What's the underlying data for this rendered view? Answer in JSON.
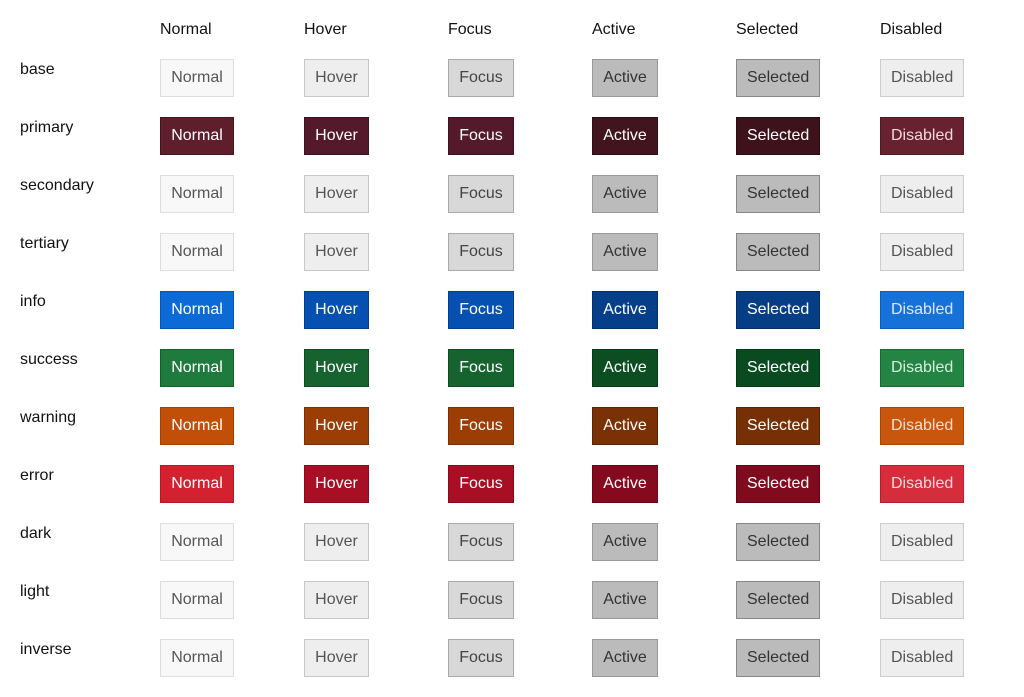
{
  "states": [
    {
      "key": "normal",
      "label": "Normal"
    },
    {
      "key": "hover",
      "label": "Hover"
    },
    {
      "key": "focus",
      "label": "Focus"
    },
    {
      "key": "active",
      "label": "Active"
    },
    {
      "key": "selected",
      "label": "Selected"
    },
    {
      "key": "disabled",
      "label": "Disabled"
    }
  ],
  "rows": [
    {
      "key": "base",
      "label": "base",
      "palette": "neutral"
    },
    {
      "key": "primary",
      "label": "primary",
      "palette": "primary"
    },
    {
      "key": "secondary",
      "label": "secondary",
      "palette": "neutral"
    },
    {
      "key": "tertiary",
      "label": "tertiary",
      "palette": "neutral"
    },
    {
      "key": "info",
      "label": "info",
      "palette": "info"
    },
    {
      "key": "success",
      "label": "success",
      "palette": "success"
    },
    {
      "key": "warning",
      "label": "warning",
      "palette": "warning"
    },
    {
      "key": "error",
      "label": "error",
      "palette": "error"
    },
    {
      "key": "dark",
      "label": "dark",
      "palette": "neutral"
    },
    {
      "key": "light",
      "label": "light",
      "palette": "neutral"
    },
    {
      "key": "inverse",
      "label": "inverse",
      "palette": "neutral"
    }
  ],
  "palettes": {
    "neutral": {
      "normal": {
        "bg": "#f8f8f8",
        "border": "#dddddd",
        "text": "#555555"
      },
      "hover": {
        "bg": "#eeeeee",
        "border": "#c8c8c8",
        "text": "#555555"
      },
      "focus": {
        "bg": "#d8d8d8",
        "border": "#aaaaaa",
        "text": "#444444"
      },
      "active": {
        "bg": "#bbbbbb",
        "border": "#999999",
        "text": "#333333"
      },
      "selected": {
        "bg": "#bbbbbb",
        "border": "#888888",
        "text": "#333333"
      },
      "disabled": {
        "bg": "#eeeeee",
        "border": "#cccccc",
        "text": "#555555"
      }
    },
    "primary": {
      "normal": {
        "bg": "#5e1e2c",
        "border": "#45141f",
        "text": "#ffffff"
      },
      "hover": {
        "bg": "#54192a",
        "border": "#3f1220",
        "text": "#ffffff"
      },
      "focus": {
        "bg": "#54192a",
        "border": "#3f1220",
        "text": "#ffffff"
      },
      "active": {
        "bg": "#41141e",
        "border": "#300e16",
        "text": "#ffffff"
      },
      "selected": {
        "bg": "#3d121b",
        "border": "#2c0c13",
        "text": "#ffffff"
      },
      "disabled": {
        "bg": "#68222f",
        "border": "#4e1a24",
        "text": "#f0d8dd"
      }
    },
    "info": {
      "normal": {
        "bg": "#0b6ad6",
        "border": "#0756b3",
        "text": "#ffffff"
      },
      "hover": {
        "bg": "#0550b1",
        "border": "#043f8e",
        "text": "#ffffff"
      },
      "focus": {
        "bg": "#0550b1",
        "border": "#043f8e",
        "text": "#ffffff"
      },
      "active": {
        "bg": "#063f89",
        "border": "#042f69",
        "text": "#ffffff"
      },
      "selected": {
        "bg": "#063e85",
        "border": "#042c63",
        "text": "#ffffff"
      },
      "disabled": {
        "bg": "#1672d9",
        "border": "#0e5dbb",
        "text": "#dbe9fb"
      }
    },
    "success": {
      "normal": {
        "bg": "#1f7a3d",
        "border": "#14602e",
        "text": "#ffffff"
      },
      "hover": {
        "bg": "#17632f",
        "border": "#0f4b22",
        "text": "#ffffff"
      },
      "focus": {
        "bg": "#17632f",
        "border": "#0f4b22",
        "text": "#ffffff"
      },
      "active": {
        "bg": "#0c4e22",
        "border": "#083a19",
        "text": "#ffffff"
      },
      "selected": {
        "bg": "#0a4a20",
        "border": "#073717",
        "text": "#ffffff"
      },
      "disabled": {
        "bg": "#238443",
        "border": "#186834",
        "text": "#d6eedd"
      }
    },
    "warning": {
      "normal": {
        "bg": "#c14f07",
        "border": "#a14005",
        "text": "#ffffff"
      },
      "hover": {
        "bg": "#9c3d06",
        "border": "#7c3005",
        "text": "#ffffff"
      },
      "focus": {
        "bg": "#9c3d06",
        "border": "#7c3005",
        "text": "#ffffff"
      },
      "active": {
        "bg": "#7b3106",
        "border": "#5d2404",
        "text": "#ffffff"
      },
      "selected": {
        "bg": "#773005",
        "border": "#5a2304",
        "text": "#ffffff"
      },
      "disabled": {
        "bg": "#c8560c",
        "border": "#a64508",
        "text": "#f8dfcf"
      }
    },
    "error": {
      "normal": {
        "bg": "#d3212f",
        "border": "#b31826",
        "text": "#ffffff"
      },
      "hover": {
        "bg": "#a80f24",
        "border": "#880b1d",
        "text": "#ffffff"
      },
      "focus": {
        "bg": "#a80f24",
        "border": "#880b1d",
        "text": "#ffffff"
      },
      "active": {
        "bg": "#85091f",
        "border": "#660717",
        "text": "#ffffff"
      },
      "selected": {
        "bg": "#800a1e",
        "border": "#610616",
        "text": "#ffffff"
      },
      "disabled": {
        "bg": "#d52d3b",
        "border": "#b51f2d",
        "text": "#f8d8db"
      }
    }
  }
}
